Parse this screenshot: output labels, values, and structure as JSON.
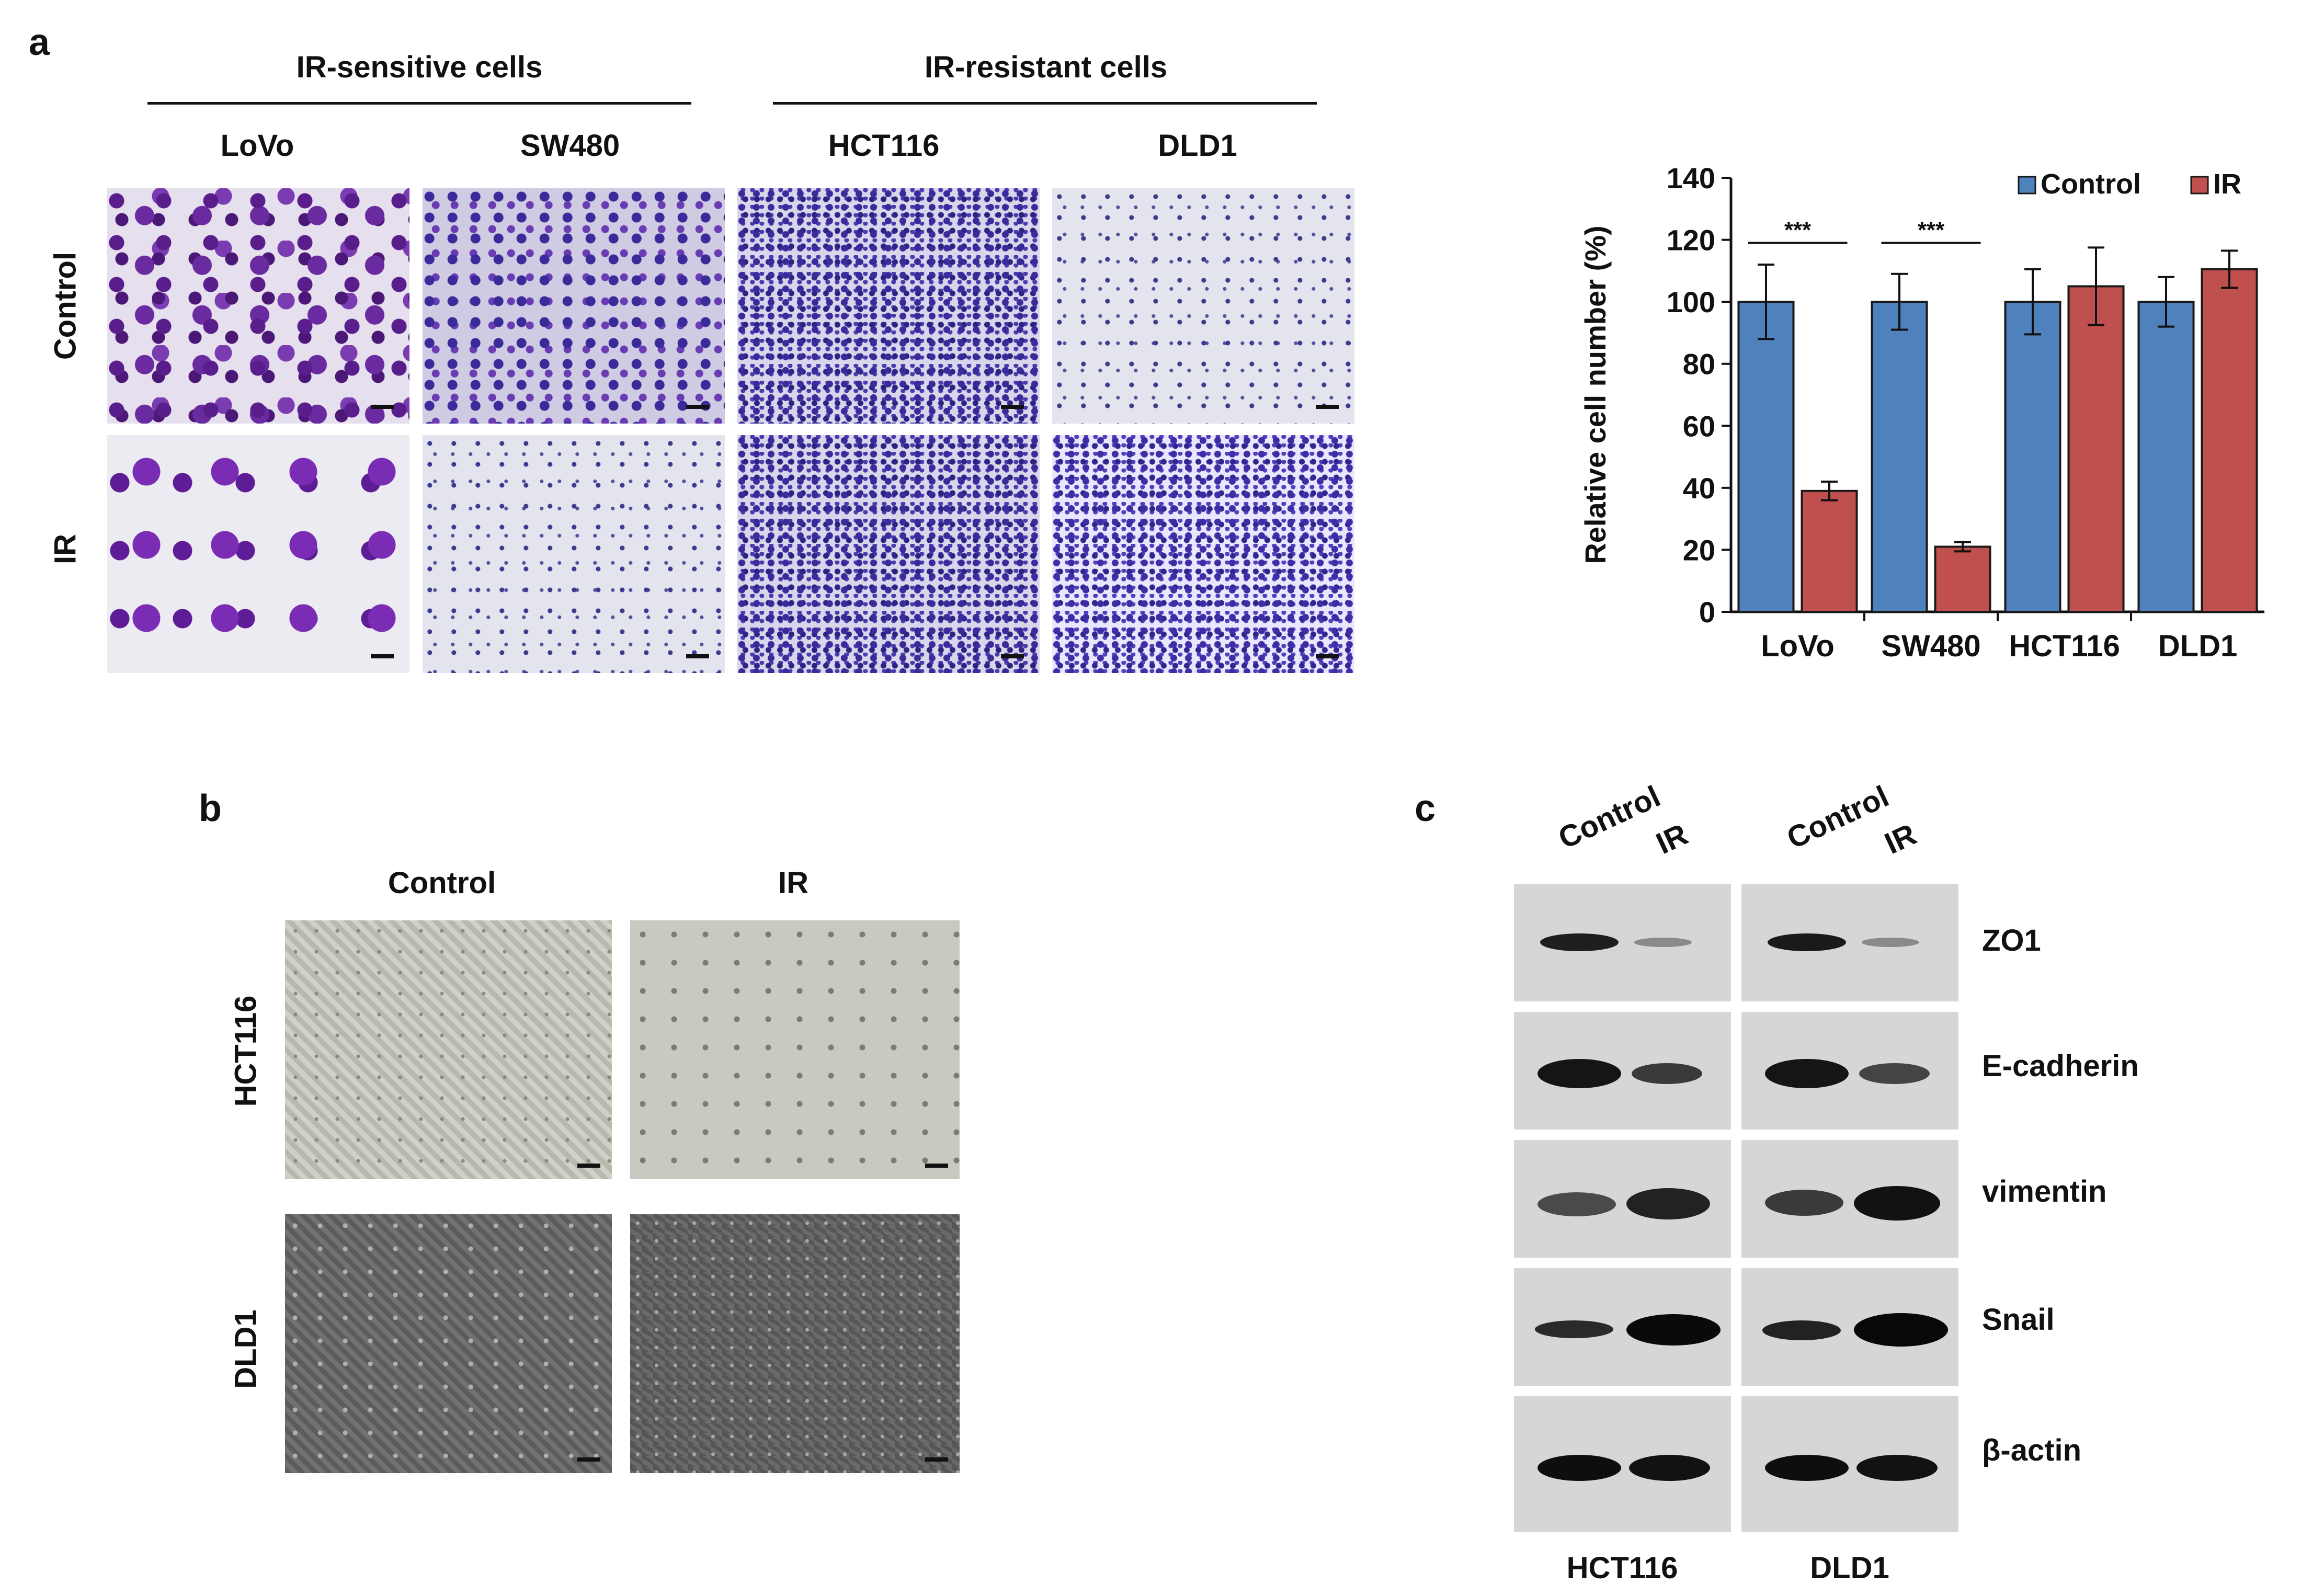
{
  "panels": {
    "a": "a",
    "b": "b",
    "c": "c"
  },
  "panel_a": {
    "group_sensitive": "IR-sensitive  cells",
    "group_resistant": "IR-resistant  cells",
    "columns": [
      "LoVo",
      "SW480",
      "HCT116",
      "DLD1"
    ],
    "rows": [
      "Control",
      "IR"
    ]
  },
  "panel_b": {
    "columns": [
      "Control",
      "IR"
    ],
    "rows": [
      "HCT116",
      "DLD1"
    ]
  },
  "panel_c": {
    "lanes": [
      "Control",
      "IR",
      "Control",
      "IR"
    ],
    "proteins": [
      "ZO1",
      "E-cadherin",
      "vimentin",
      "Snail",
      "β-actin"
    ],
    "cell_lines": [
      "HCT116",
      "DLD1"
    ]
  },
  "chart_data": {
    "type": "bar",
    "categories": [
      "LoVo",
      "SW480",
      "HCT116",
      "DLD1"
    ],
    "series": [
      {
        "name": "Control",
        "color": "#4f81bd",
        "values": [
          100,
          100,
          100,
          100
        ],
        "errors": [
          12,
          9,
          10.5,
          8
        ]
      },
      {
        "name": "IR",
        "color": "#c0504d",
        "values": [
          39,
          21,
          105,
          110.5
        ],
        "errors": [
          3,
          1.5,
          12.5,
          6
        ]
      }
    ],
    "significance": [
      {
        "category": "LoVo",
        "label": "***"
      },
      {
        "category": "SW480",
        "label": "***"
      }
    ],
    "ylabel": "Relative cell number (%)",
    "ylim": [
      0,
      140
    ],
    "yticks": [
      0,
      20,
      40,
      60,
      80,
      100,
      120,
      140
    ],
    "legend": "top-right",
    "grid": false
  }
}
